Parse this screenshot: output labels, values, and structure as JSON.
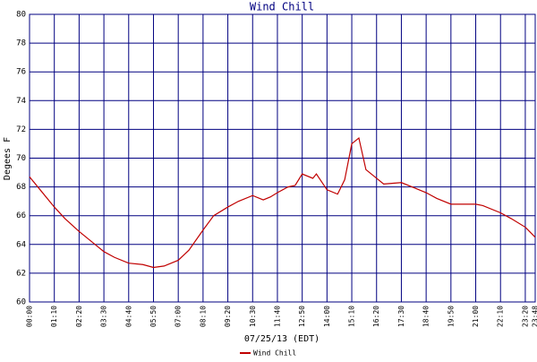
{
  "chart_data": {
    "type": "line",
    "title": "Wind Chill",
    "xlabel": "07/25/13 (EDT)",
    "ylabel": "Degees F",
    "x": [
      0,
      30,
      70,
      100,
      140,
      180,
      210,
      240,
      280,
      320,
      350,
      380,
      420,
      450,
      490,
      520,
      560,
      590,
      630,
      660,
      680,
      700,
      730,
      750,
      770,
      800,
      810,
      840,
      870,
      890,
      910,
      930,
      950,
      980,
      1000,
      1050,
      1080,
      1120,
      1150,
      1190,
      1260,
      1280,
      1330,
      1360,
      1400,
      1428
    ],
    "series": [
      {
        "name": "Wind Chill",
        "color": "#c00000",
        "values": [
          68.7,
          67.8,
          66.6,
          65.8,
          64.9,
          64.1,
          63.5,
          63.1,
          62.7,
          62.6,
          62.4,
          62.5,
          62.9,
          63.6,
          65.0,
          66.0,
          66.6,
          67.0,
          67.4,
          67.1,
          67.3,
          67.6,
          68.0,
          68.1,
          68.9,
          68.6,
          68.9,
          67.8,
          67.5,
          68.5,
          71.0,
          71.4,
          69.2,
          68.6,
          68.2,
          68.3,
          68.0,
          67.6,
          67.2,
          66.8,
          66.8,
          66.7,
          66.2,
          65.8,
          65.2,
          64.5
        ]
      }
    ],
    "xlim": [
      0,
      1428
    ],
    "xticks": [
      {
        "value": 0,
        "label": "00:00"
      },
      {
        "value": 70,
        "label": "01:10"
      },
      {
        "value": 140,
        "label": "02:20"
      },
      {
        "value": 210,
        "label": "03:30"
      },
      {
        "value": 280,
        "label": "04:40"
      },
      {
        "value": 350,
        "label": "05:50"
      },
      {
        "value": 420,
        "label": "07:00"
      },
      {
        "value": 490,
        "label": "08:10"
      },
      {
        "value": 560,
        "label": "09:20"
      },
      {
        "value": 630,
        "label": "10:30"
      },
      {
        "value": 700,
        "label": "11:40"
      },
      {
        "value": 770,
        "label": "12:50"
      },
      {
        "value": 840,
        "label": "14:00"
      },
      {
        "value": 910,
        "label": "15:10"
      },
      {
        "value": 980,
        "label": "16:20"
      },
      {
        "value": 1050,
        "label": "17:30"
      },
      {
        "value": 1120,
        "label": "18:40"
      },
      {
        "value": 1190,
        "label": "19:50"
      },
      {
        "value": 1260,
        "label": "21:00"
      },
      {
        "value": 1330,
        "label": "22:10"
      },
      {
        "value": 1400,
        "label": "23:20"
      },
      {
        "value": 1428,
        "label": "23:48"
      }
    ],
    "ylim": [
      60,
      80
    ],
    "yticks": [
      60,
      62,
      64,
      66,
      68,
      70,
      72,
      74,
      76,
      78,
      80
    ],
    "grid": true,
    "grid_color": "#000080"
  }
}
